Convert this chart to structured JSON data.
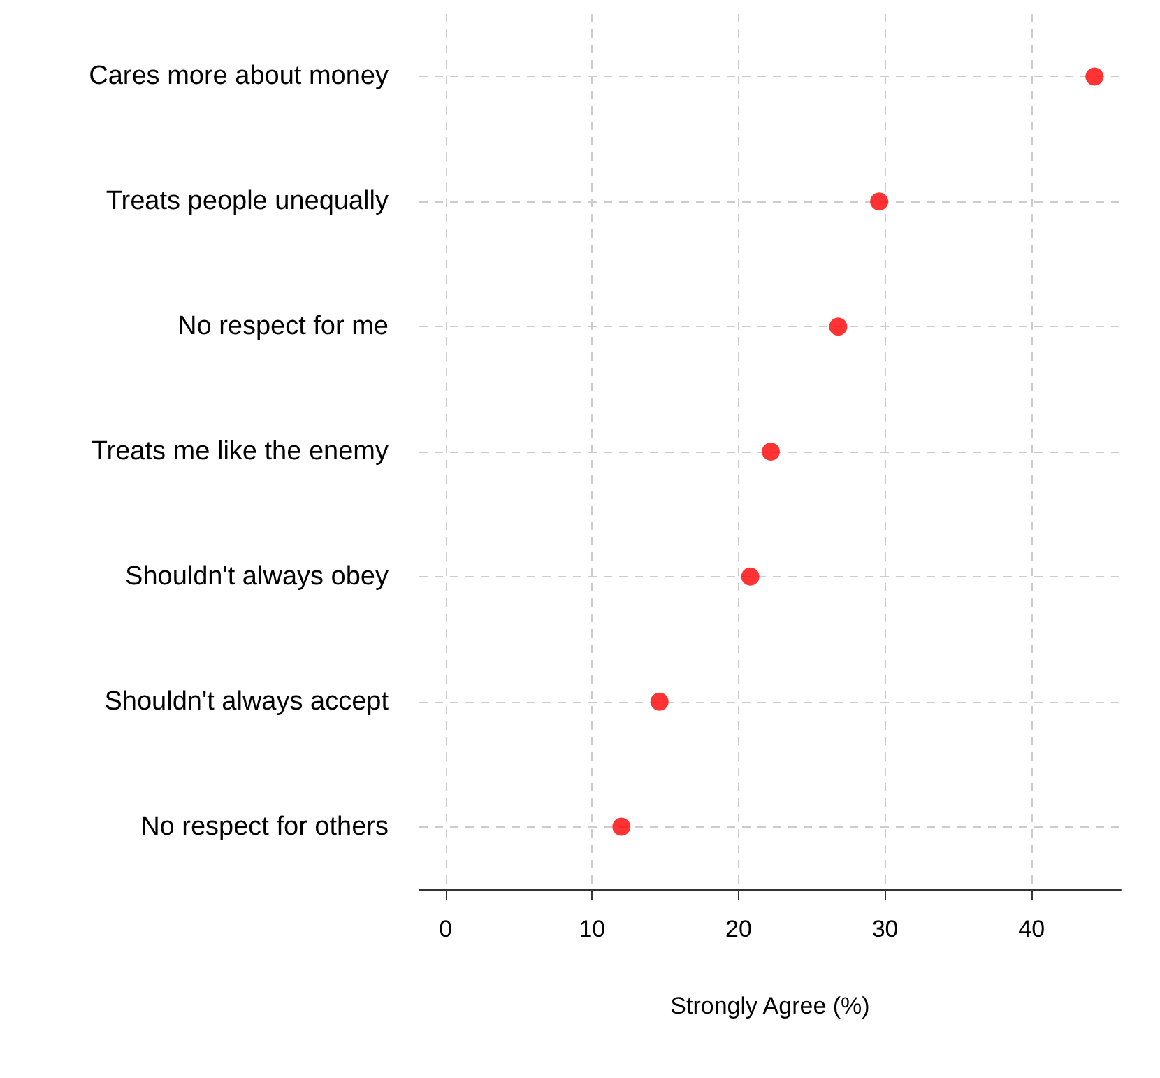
{
  "chart_data": {
    "type": "scatter",
    "orientation": "horizontal",
    "xlabel": "Strongly Agree (%)",
    "categories": [
      "Cares more about money",
      "Treats people unequally",
      "No respect for me",
      "Treats me like the enemy",
      "Shouldn't always obey",
      "Shouldn't always accept",
      "No respect for others"
    ],
    "series": [
      {
        "color": "#ff0000",
        "values": [
          44.3,
          29.6,
          26.8,
          22.2,
          20.8,
          14.6,
          12.0
        ]
      }
    ],
    "xlim": [
      -1.8,
      46.1
    ],
    "xticks": [
      0,
      10,
      20,
      30,
      40
    ],
    "grid": true,
    "marker": "circle"
  }
}
